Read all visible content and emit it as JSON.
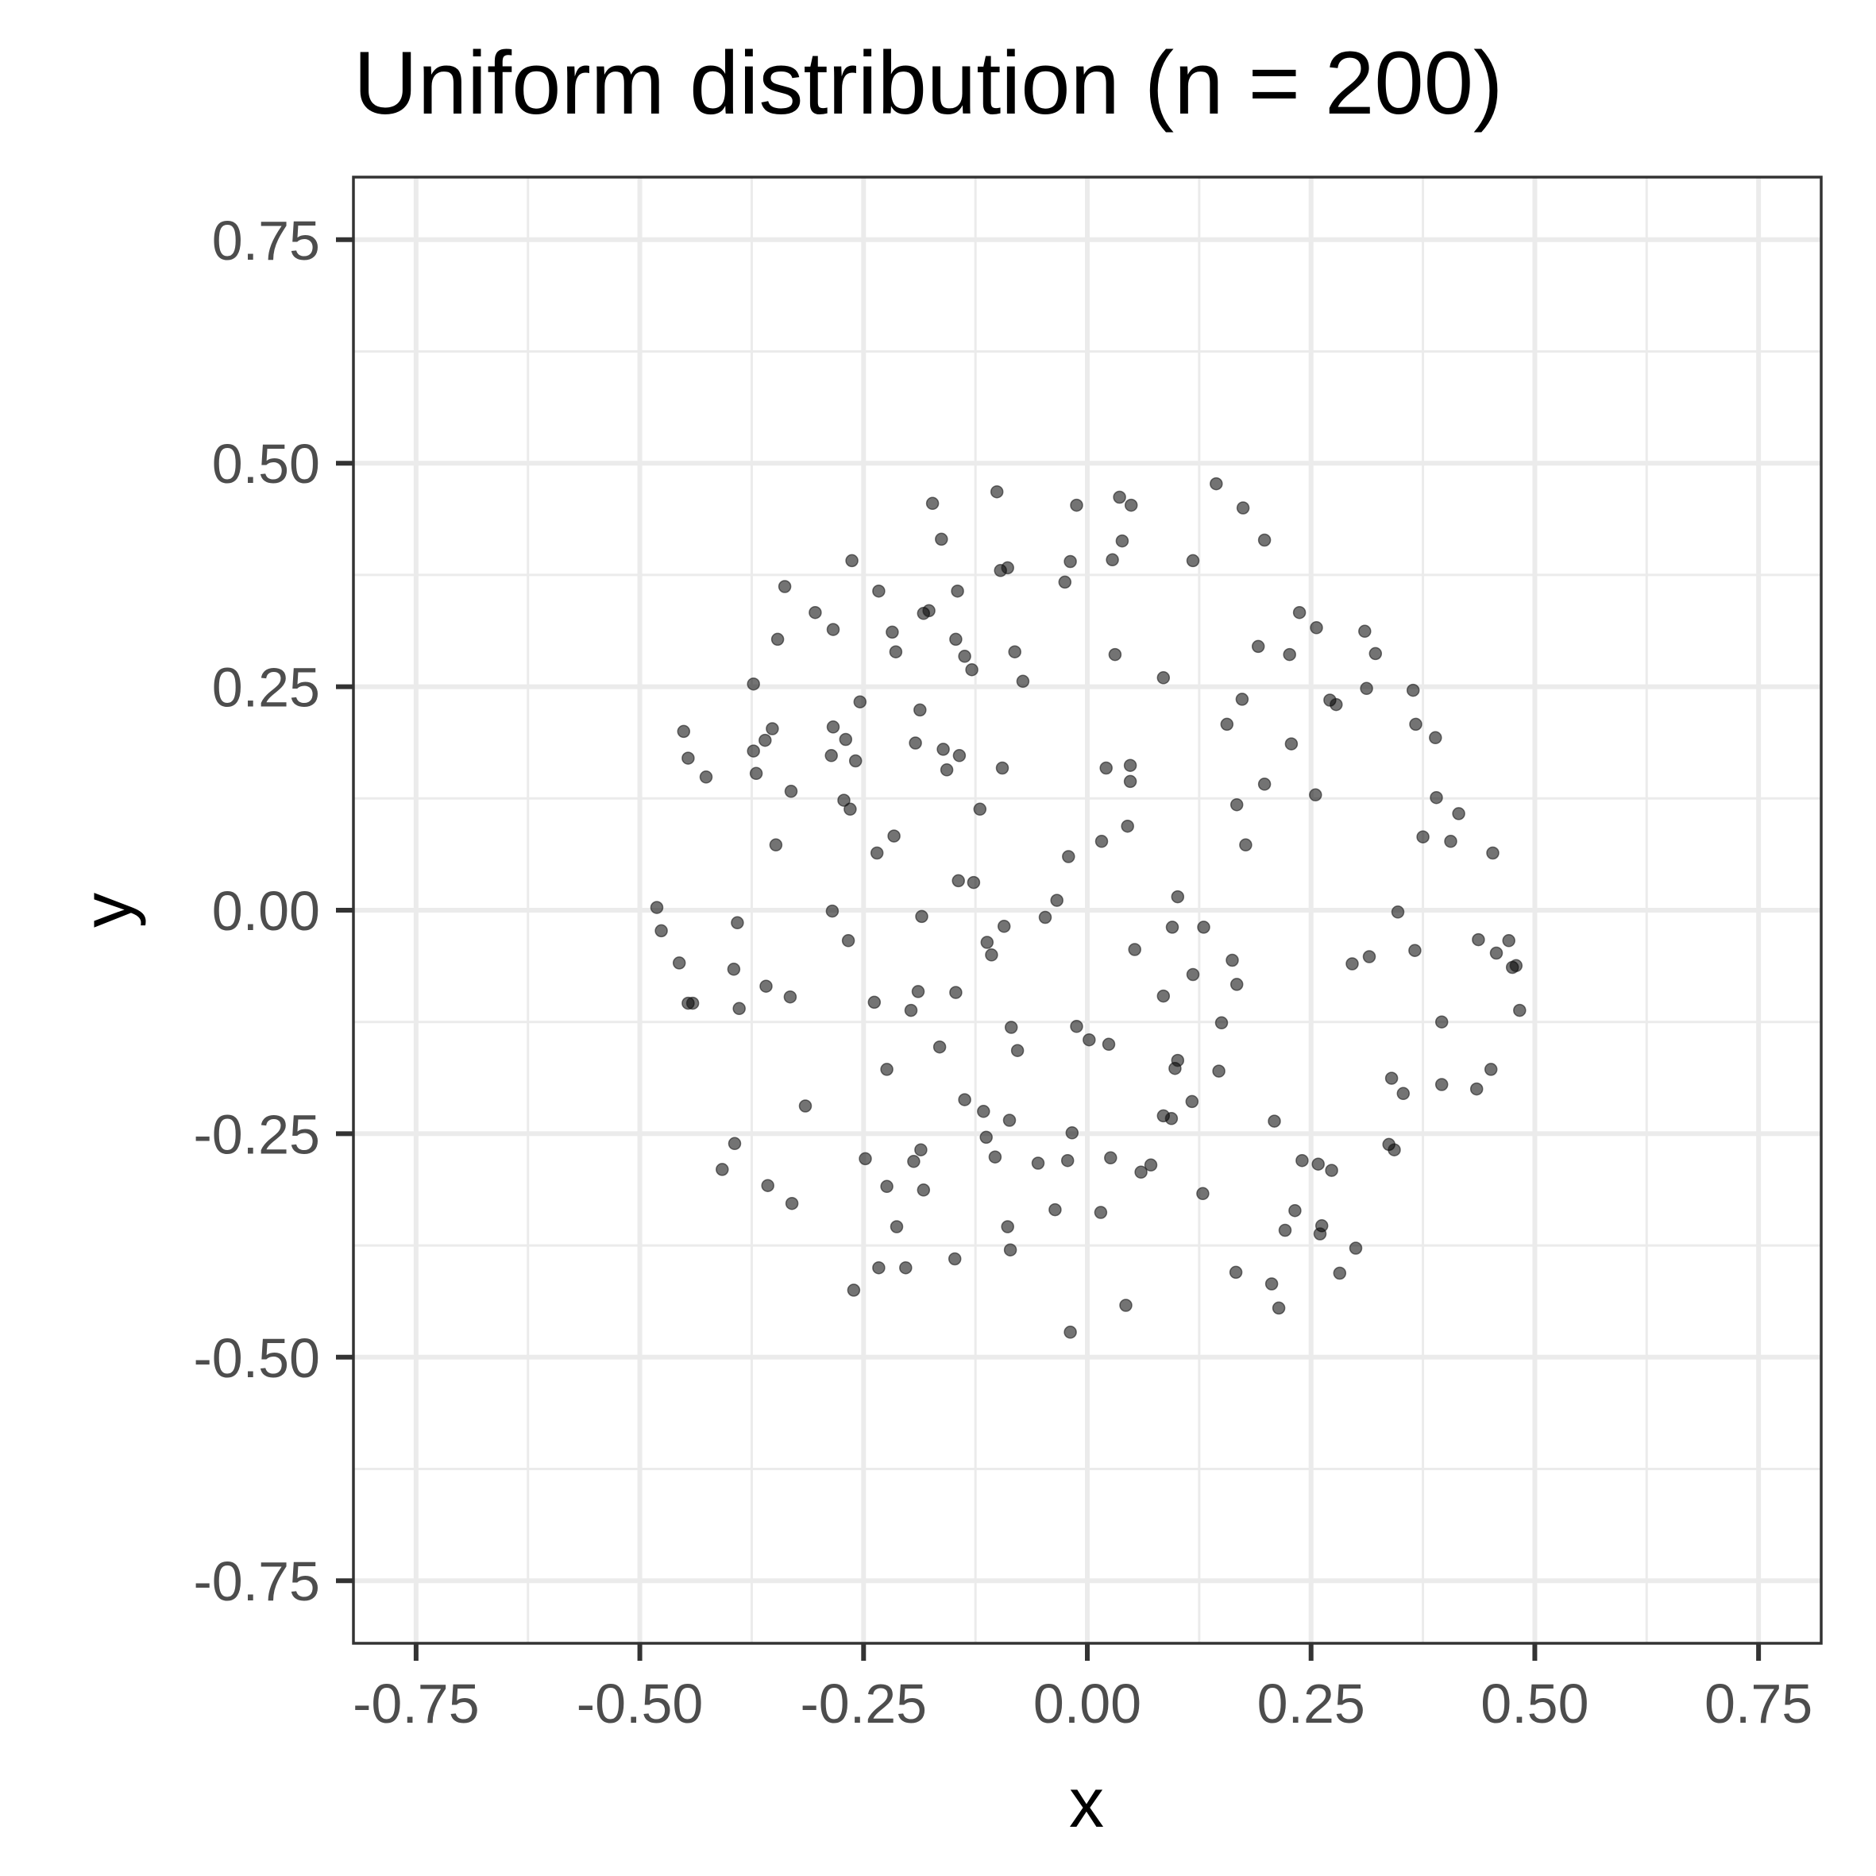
{
  "chart_data": {
    "type": "scatter",
    "title": "Uniform distribution (n = 200)",
    "xlabel": "x",
    "ylabel": "y",
    "xlim": [
      -0.82,
      0.82
    ],
    "ylim": [
      -0.82,
      0.82
    ],
    "x_ticks": [
      -0.75,
      -0.5,
      -0.25,
      0,
      0.25,
      0.5,
      0.75
    ],
    "y_ticks": [
      -0.75,
      -0.5,
      -0.25,
      0,
      0.25,
      0.5,
      0.75
    ],
    "x_tick_labels": [
      "-0.75",
      "-0.50",
      "-0.25",
      "0.00",
      "0.25",
      "0.50",
      "0.75"
    ],
    "y_tick_labels": [
      "-0.75",
      "-0.50",
      "-0.25",
      "0.00",
      "0.25",
      "0.50",
      "0.75"
    ],
    "grid": true,
    "points": [
      [
        -0.173,
        0.455
      ],
      [
        -0.101,
        0.468
      ],
      [
        -0.163,
        0.415
      ],
      [
        -0.012,
        0.453
      ],
      [
        0.036,
        0.462
      ],
      [
        0.049,
        0.453
      ],
      [
        0.144,
        0.477
      ],
      [
        0.174,
        0.45
      ],
      [
        0.198,
        0.414
      ],
      [
        0.039,
        0.413
      ],
      [
        -0.263,
        0.391
      ],
      [
        -0.097,
        0.38
      ],
      [
        -0.089,
        0.383
      ],
      [
        -0.019,
        0.39
      ],
      [
        0.028,
        0.392
      ],
      [
        0.118,
        0.391
      ],
      [
        -0.338,
        0.362
      ],
      [
        -0.025,
        0.367
      ],
      [
        -0.233,
        0.357
      ],
      [
        -0.145,
        0.357
      ],
      [
        -0.304,
        0.333
      ],
      [
        -0.183,
        0.332
      ],
      [
        -0.177,
        0.335
      ],
      [
        -0.284,
        0.314
      ],
      [
        -0.218,
        0.311
      ],
      [
        -0.346,
        0.303
      ],
      [
        -0.147,
        0.303
      ],
      [
        -0.214,
        0.289
      ],
      [
        -0.137,
        0.284
      ],
      [
        -0.081,
        0.289
      ],
      [
        0.031,
        0.286
      ],
      [
        -0.129,
        0.269
      ],
      [
        -0.072,
        0.256
      ],
      [
        0.085,
        0.26
      ],
      [
        0.191,
        0.295
      ],
      [
        0.237,
        0.333
      ],
      [
        0.256,
        0.316
      ],
      [
        0.226,
        0.286
      ],
      [
        0.31,
        0.312
      ],
      [
        0.322,
        0.287
      ],
      [
        -0.373,
        0.253
      ],
      [
        -0.254,
        0.233
      ],
      [
        -0.187,
        0.224
      ],
      [
        0.173,
        0.236
      ],
      [
        0.271,
        0.235
      ],
      [
        0.278,
        0.23
      ],
      [
        0.312,
        0.248
      ],
      [
        0.364,
        0.246
      ],
      [
        -0.451,
        0.2
      ],
      [
        -0.352,
        0.203
      ],
      [
        -0.284,
        0.205
      ],
      [
        -0.27,
        0.191
      ],
      [
        -0.192,
        0.187
      ],
      [
        -0.36,
        0.19
      ],
      [
        0.156,
        0.208
      ],
      [
        0.228,
        0.186
      ],
      [
        0.367,
        0.208
      ],
      [
        0.389,
        0.193
      ],
      [
        -0.446,
        0.17
      ],
      [
        -0.373,
        0.178
      ],
      [
        -0.286,
        0.173
      ],
      [
        -0.259,
        0.167
      ],
      [
        -0.161,
        0.18
      ],
      [
        -0.143,
        0.173
      ],
      [
        -0.426,
        0.149
      ],
      [
        -0.37,
        0.153
      ],
      [
        -0.157,
        0.157
      ],
      [
        -0.095,
        0.159
      ],
      [
        0.021,
        0.159
      ],
      [
        0.048,
        0.162
      ],
      [
        -0.331,
        0.133
      ],
      [
        0.048,
        0.144
      ],
      [
        0.198,
        0.141
      ],
      [
        -0.272,
        0.123
      ],
      [
        -0.265,
        0.113
      ],
      [
        -0.12,
        0.113
      ],
      [
        0.167,
        0.118
      ],
      [
        0.255,
        0.129
      ],
      [
        0.39,
        0.126
      ],
      [
        0.415,
        0.108
      ],
      [
        -0.216,
        0.083
      ],
      [
        0.045,
        0.094
      ],
      [
        0.016,
        0.077
      ],
      [
        0.177,
        0.073
      ],
      [
        0.375,
        0.082
      ],
      [
        0.406,
        0.077
      ],
      [
        -0.348,
        0.073
      ],
      [
        -0.235,
        0.064
      ],
      [
        -0.021,
        0.06
      ],
      [
        0.453,
        0.064
      ],
      [
        -0.144,
        0.033
      ],
      [
        -0.127,
        0.031
      ],
      [
        -0.034,
        0.011
      ],
      [
        0.101,
        0.015
      ],
      [
        -0.481,
        0.003
      ],
      [
        -0.285,
        -0.001
      ],
      [
        -0.185,
        -0.007
      ],
      [
        -0.047,
        -0.008
      ],
      [
        0.347,
        -0.002
      ],
      [
        -0.476,
        -0.023
      ],
      [
        -0.391,
        -0.014
      ],
      [
        -0.093,
        -0.018
      ],
      [
        0.095,
        -0.019
      ],
      [
        0.13,
        -0.019
      ],
      [
        -0.267,
        -0.034
      ],
      [
        -0.112,
        -0.036
      ],
      [
        -0.107,
        -0.05
      ],
      [
        0.053,
        -0.044
      ],
      [
        0.366,
        -0.045
      ],
      [
        0.437,
        -0.033
      ],
      [
        0.471,
        -0.034
      ],
      [
        -0.456,
        -0.059
      ],
      [
        -0.395,
        -0.066
      ],
      [
        0.162,
        -0.056
      ],
      [
        0.296,
        -0.06
      ],
      [
        0.315,
        -0.052
      ],
      [
        0.457,
        -0.048
      ],
      [
        0.475,
        -0.064
      ],
      [
        0.479,
        -0.062
      ],
      [
        -0.359,
        -0.085
      ],
      [
        -0.332,
        -0.097
      ],
      [
        -0.189,
        -0.091
      ],
      [
        -0.147,
        -0.092
      ],
      [
        0.085,
        -0.096
      ],
      [
        0.118,
        -0.072
      ],
      [
        0.167,
        -0.083
      ],
      [
        -0.446,
        -0.104
      ],
      [
        -0.441,
        -0.104
      ],
      [
        -0.389,
        -0.11
      ],
      [
        -0.238,
        -0.103
      ],
      [
        -0.197,
        -0.112
      ],
      [
        0.483,
        -0.112
      ],
      [
        -0.085,
        -0.131
      ],
      [
        -0.012,
        -0.13
      ],
      [
        0.002,
        -0.145
      ],
      [
        0.024,
        -0.15
      ],
      [
        0.15,
        -0.126
      ],
      [
        0.396,
        -0.125
      ],
      [
        -0.165,
        -0.153
      ],
      [
        -0.078,
        -0.157
      ],
      [
        -0.224,
        -0.178
      ],
      [
        0.098,
        -0.177
      ],
      [
        0.101,
        -0.168
      ],
      [
        0.147,
        -0.18
      ],
      [
        0.34,
        -0.188
      ],
      [
        0.451,
        -0.178
      ],
      [
        -0.315,
        -0.219
      ],
      [
        -0.137,
        -0.212
      ],
      [
        -0.116,
        -0.225
      ],
      [
        0.117,
        -0.214
      ],
      [
        0.353,
        -0.205
      ],
      [
        0.396,
        -0.195
      ],
      [
        0.435,
        -0.2
      ],
      [
        -0.087,
        -0.235
      ],
      [
        0.085,
        -0.23
      ],
      [
        0.094,
        -0.233
      ],
      [
        0.209,
        -0.236
      ],
      [
        -0.394,
        -0.261
      ],
      [
        -0.113,
        -0.254
      ],
      [
        -0.017,
        -0.249
      ],
      [
        -0.248,
        -0.278
      ],
      [
        -0.186,
        -0.268
      ],
      [
        -0.194,
        -0.281
      ],
      [
        -0.103,
        -0.276
      ],
      [
        -0.055,
        -0.283
      ],
      [
        -0.022,
        -0.28
      ],
      [
        0.026,
        -0.277
      ],
      [
        0.06,
        -0.293
      ],
      [
        0.071,
        -0.285
      ],
      [
        0.24,
        -0.28
      ],
      [
        0.258,
        -0.284
      ],
      [
        0.273,
        -0.291
      ],
      [
        0.337,
        -0.262
      ],
      [
        0.343,
        -0.268
      ],
      [
        -0.408,
        -0.29
      ],
      [
        -0.357,
        -0.308
      ],
      [
        -0.224,
        -0.309
      ],
      [
        -0.183,
        -0.313
      ],
      [
        -0.33,
        -0.328
      ],
      [
        -0.036,
        -0.335
      ],
      [
        0.015,
        -0.338
      ],
      [
        0.129,
        -0.317
      ],
      [
        0.232,
        -0.336
      ],
      [
        -0.213,
        -0.354
      ],
      [
        -0.089,
        -0.354
      ],
      [
        0.221,
        -0.358
      ],
      [
        0.262,
        -0.353
      ],
      [
        0.26,
        -0.362
      ],
      [
        -0.233,
        -0.4
      ],
      [
        -0.203,
        -0.4
      ],
      [
        -0.148,
        -0.39
      ],
      [
        -0.086,
        -0.38
      ],
      [
        0.3,
        -0.378
      ],
      [
        -0.261,
        -0.425
      ],
      [
        0.166,
        -0.405
      ],
      [
        0.206,
        -0.418
      ],
      [
        0.282,
        -0.406
      ],
      [
        0.043,
        -0.442
      ],
      [
        0.214,
        -0.445
      ],
      [
        -0.019,
        -0.472
      ]
    ]
  }
}
